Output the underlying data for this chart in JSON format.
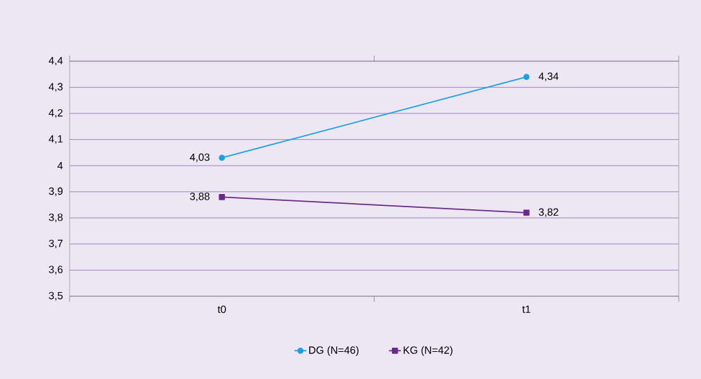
{
  "chart_data": {
    "type": "line",
    "categories": [
      "t0",
      "t1"
    ],
    "ylim": [
      3.5,
      4.4
    ],
    "yticks": [
      {
        "value": 3.5,
        "label": "3,5"
      },
      {
        "value": 3.6,
        "label": "3,6"
      },
      {
        "value": 3.7,
        "label": "3,7"
      },
      {
        "value": 3.8,
        "label": "3,8"
      },
      {
        "value": 3.9,
        "label": "3,9"
      },
      4,
      {
        "value": 4.1,
        "label": "4,1"
      },
      {
        "value": 4.2,
        "label": "4,2"
      },
      {
        "value": 4.3,
        "label": "4,3"
      },
      {
        "value": 4.4,
        "label": "4,4"
      }
    ],
    "grid": "y",
    "legend": "bottom",
    "line_style": "solid",
    "series": [
      {
        "name": "DG (N=46)",
        "color": "#1ba1e2",
        "marker": "circle",
        "values": [
          4.03,
          4.34
        ],
        "value_labels": [
          "4,03",
          "4,34"
        ]
      },
      {
        "name": "KG (N=42)",
        "color": "#6a2a8a",
        "marker": "square",
        "values": [
          3.88,
          3.82
        ],
        "value_labels": [
          "3,88",
          "3,82"
        ]
      }
    ]
  }
}
